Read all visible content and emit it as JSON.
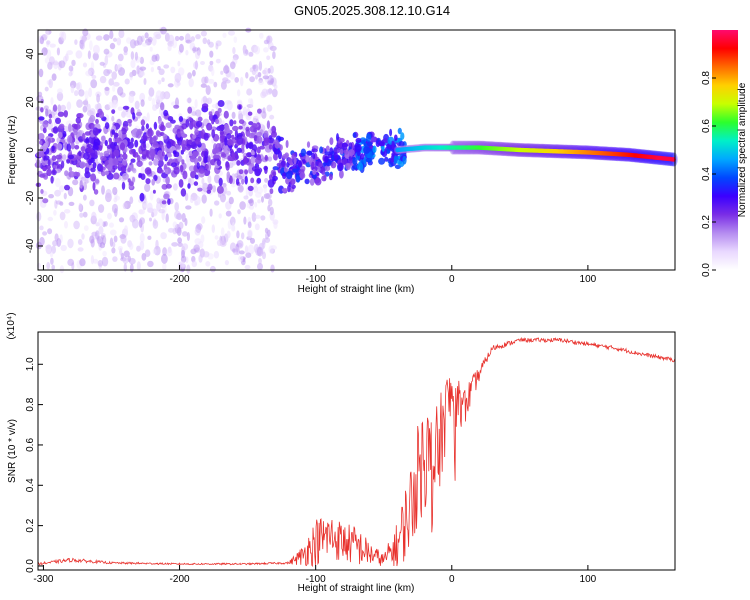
{
  "title": "GN05.2025.308.12.10.G14",
  "colors": {
    "snr_line": "#e8322d",
    "background": "#ffffff",
    "axis": "#000000",
    "colormap": [
      "#ffffff",
      "#e9d8ff",
      "#b58cf0",
      "#7a2ee6",
      "#3b00ff",
      "#0047ff",
      "#00a8ff",
      "#00f0c8",
      "#2cff2c",
      "#c8ff00",
      "#ffd000",
      "#ff6a00",
      "#ff0000",
      "#ff0a6e"
    ]
  },
  "chart_data": [
    {
      "type": "heatmap",
      "name": "spectrogram",
      "xlabel": "Height of straight line (km)",
      "ylabel": "Frequency (Hz)",
      "xlim": [
        -304,
        164
      ],
      "ylim": [
        -50,
        50
      ],
      "xticks": [
        -300,
        -200,
        -100,
        0,
        100
      ],
      "yticks": [
        -40,
        -20,
        0,
        20,
        40
      ],
      "colorbar": {
        "label": "Normalized spectral amplitude",
        "range": [
          0,
          1
        ],
        "ticks": [
          "0.0",
          "0.2",
          "0.4",
          "0.6",
          "0.8"
        ],
        "tick_values": [
          0,
          0.2,
          0.4,
          0.6,
          0.8
        ]
      },
      "ridge": {
        "x": [
          -304,
          -250,
          -200,
          -150,
          -130,
          -120,
          -100,
          -80,
          -60,
          -40,
          -20,
          0,
          20,
          50,
          100,
          130,
          164
        ],
        "freq": [
          0,
          0,
          0,
          0,
          -2,
          -8,
          -6,
          -3,
          0,
          0,
          1,
          1,
          1,
          0,
          -1,
          -2,
          -4
        ]
      },
      "regions": [
        {
          "x_range": [
            -304,
            -130
          ],
          "description": "noisy purple scatter",
          "amplitude": 0.1
        },
        {
          "x_range": [
            -130,
            -30
          ],
          "description": "blue-cyan blobs",
          "amplitude": 0.25
        },
        {
          "x_range": [
            -30,
            164
          ],
          "description": "narrow green-yellow-red line",
          "amplitude": 0.75
        }
      ]
    },
    {
      "type": "line",
      "name": "snr",
      "xlabel": "Height of straight line (km)",
      "ylabel": "SNR (10 * v/v)",
      "y_multiplier": "(x10⁴)",
      "xlim": [
        -304,
        164
      ],
      "ylim": [
        -0.02,
        1.16
      ],
      "xticks": [
        -300,
        -200,
        -100,
        0,
        100
      ],
      "yticks": [
        "0.0",
        "0.2",
        "0.4",
        "0.6",
        "0.8",
        "1.0"
      ],
      "ytick_values": [
        0,
        0.2,
        0.4,
        0.6,
        0.8,
        1.0
      ],
      "x": [
        -304,
        -280,
        -250,
        -200,
        -150,
        -120,
        -110,
        -100,
        -90,
        -80,
        -70,
        -60,
        -50,
        -40,
        -35,
        -30,
        -25,
        -20,
        -15,
        -10,
        -5,
        0,
        5,
        10,
        15,
        20,
        25,
        30,
        40,
        50,
        60,
        80,
        100,
        120,
        140,
        164
      ],
      "values": [
        0.01,
        0.03,
        0.015,
        0.01,
        0.01,
        0.015,
        0.05,
        0.12,
        0.15,
        0.12,
        0.1,
        0.06,
        0.03,
        0.1,
        0.2,
        0.3,
        0.45,
        0.55,
        0.5,
        0.55,
        0.75,
        0.85,
        0.8,
        0.8,
        0.88,
        0.95,
        1.02,
        1.08,
        1.1,
        1.12,
        1.12,
        1.12,
        1.1,
        1.08,
        1.05,
        1.02
      ],
      "noise": [
        0.005,
        0.01,
        0.005,
        0.004,
        0.004,
        0.005,
        0.05,
        0.12,
        0.12,
        0.1,
        0.1,
        0.06,
        0.03,
        0.12,
        0.18,
        0.22,
        0.25,
        0.28,
        0.28,
        0.25,
        0.2,
        0.15,
        0.12,
        0.1,
        0.06,
        0.04,
        0.02,
        0.015,
        0.012,
        0.01,
        0.01,
        0.01,
        0.01,
        0.01,
        0.01,
        0.01
      ]
    }
  ]
}
